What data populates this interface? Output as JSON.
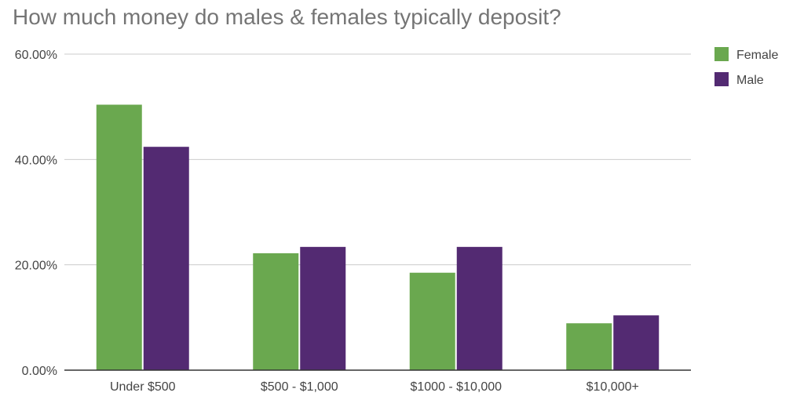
{
  "chart_data": {
    "type": "bar",
    "title": "How much money do males & females typically deposit?",
    "categories": [
      "Under $500",
      "$500 - $1,000",
      "$1000 - $10,000",
      "$10,000+"
    ],
    "series": [
      {
        "name": "Female",
        "color": "#6aa84f",
        "values": [
          50.4,
          22.2,
          18.5,
          8.9
        ]
      },
      {
        "name": "Male",
        "color": "#532a72",
        "values": [
          42.4,
          23.4,
          23.4,
          10.4
        ]
      }
    ],
    "ylim": [
      0,
      60
    ],
    "yticks": [
      {
        "value": 0,
        "label": "0.00%"
      },
      {
        "value": 20,
        "label": "20.00%"
      },
      {
        "value": 40,
        "label": "40.00%"
      },
      {
        "value": 60,
        "label": "60.00%"
      }
    ],
    "grid": true,
    "legend": "right"
  }
}
